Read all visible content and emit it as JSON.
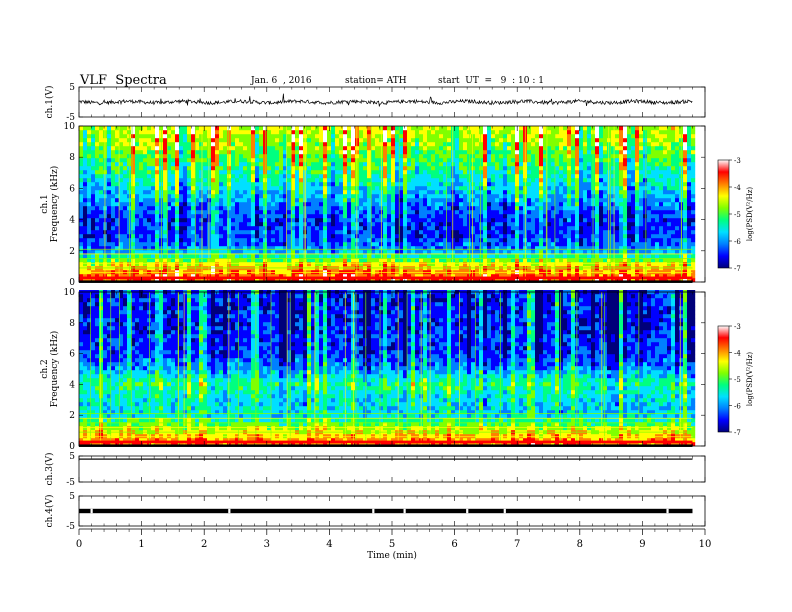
{
  "header": {
    "title": "VLF  Spectra",
    "date": "Jan. 6  , 2016",
    "station": "station= ATH",
    "start": "start  UT  =   9  : 10 : 1"
  },
  "chart_data": [
    {
      "type": "line",
      "name": "ch1-waveform",
      "ylabel": "ch.1(V)",
      "ylim": [
        -5,
        5
      ],
      "yticks": [
        "5",
        "-5"
      ],
      "xlim": [
        0,
        10
      ],
      "baseline": 0,
      "duration_min": 9.8,
      "grid": false
    },
    {
      "type": "heatmap",
      "name": "ch1-spectrogram",
      "ylabel": "ch.1\nFrequency  (kHz)",
      "ylim": [
        0,
        10
      ],
      "yticks": [
        "0",
        "2",
        "4",
        "6",
        "8",
        "10"
      ],
      "xlim": [
        0,
        10
      ],
      "duration_min": 9.8,
      "colorbar": {
        "label": "log(PSD(V²/Hz)",
        "range": [
          -7,
          -3
        ],
        "ticks": [
          "-3",
          "-4",
          "-5",
          "-6",
          "-7"
        ]
      },
      "colors": [
        "#00007a",
        "#0000ff",
        "#0080ff",
        "#00e0ff",
        "#00ff80",
        "#80ff00",
        "#ffff00",
        "#ff8000",
        "#ff0000",
        "#ffffff"
      ],
      "profile_low_to_high": [
        -3.7,
        -4.2,
        -5.9,
        -6.3,
        -6.3,
        -6.0,
        -5.6,
        -5.3,
        -5.0,
        -4.7,
        -4.5
      ]
    },
    {
      "type": "heatmap",
      "name": "ch2-spectrogram",
      "ylabel": "ch.2\nFrequency  (kHz)",
      "ylim": [
        0,
        10
      ],
      "yticks": [
        "0",
        "2",
        "4",
        "6",
        "8",
        "10"
      ],
      "xlim": [
        0,
        10
      ],
      "duration_min": 9.8,
      "colorbar": {
        "label": "log(PSD(V²/Hz)",
        "range": [
          -7,
          -3
        ],
        "ticks": [
          "-3",
          "-4",
          "-5",
          "-6",
          "-7"
        ]
      },
      "colors": [
        "#00007a",
        "#0000ff",
        "#0080ff",
        "#00e0ff",
        "#00ff80",
        "#80ff00",
        "#ffff00",
        "#ff8000",
        "#ff0000",
        "#ffffff"
      ],
      "profile_low_to_high": [
        -3.8,
        -4.5,
        -5.6,
        -5.6,
        -5.2,
        -5.9,
        -6.3,
        -6.3,
        -6.4,
        -6.4,
        -6.4
      ]
    },
    {
      "type": "line",
      "name": "ch3-waveform",
      "ylabel": "ch.3(V)",
      "ylim": [
        -5,
        5
      ],
      "yticks": [
        "5",
        "-5"
      ],
      "xlim": [
        0,
        10
      ],
      "baseline": 3.8,
      "duration_min": 9.8
    },
    {
      "type": "line",
      "name": "ch4-waveform",
      "ylabel": "ch.4(V)",
      "ylim": [
        -5,
        5
      ],
      "yticks": [
        "5",
        "-5"
      ],
      "xlim": [
        0,
        10
      ],
      "baseline": 0,
      "duration_min": 9.8,
      "gaps_min": [
        0.2,
        2.4,
        4.7,
        5.2,
        6.2,
        6.8,
        9.4
      ]
    }
  ],
  "xaxis": {
    "label": "Time  (min)",
    "ticks": [
      "0",
      "1",
      "2",
      "3",
      "4",
      "5",
      "6",
      "7",
      "8",
      "9",
      "10"
    ],
    "xlim": [
      0,
      10
    ]
  }
}
